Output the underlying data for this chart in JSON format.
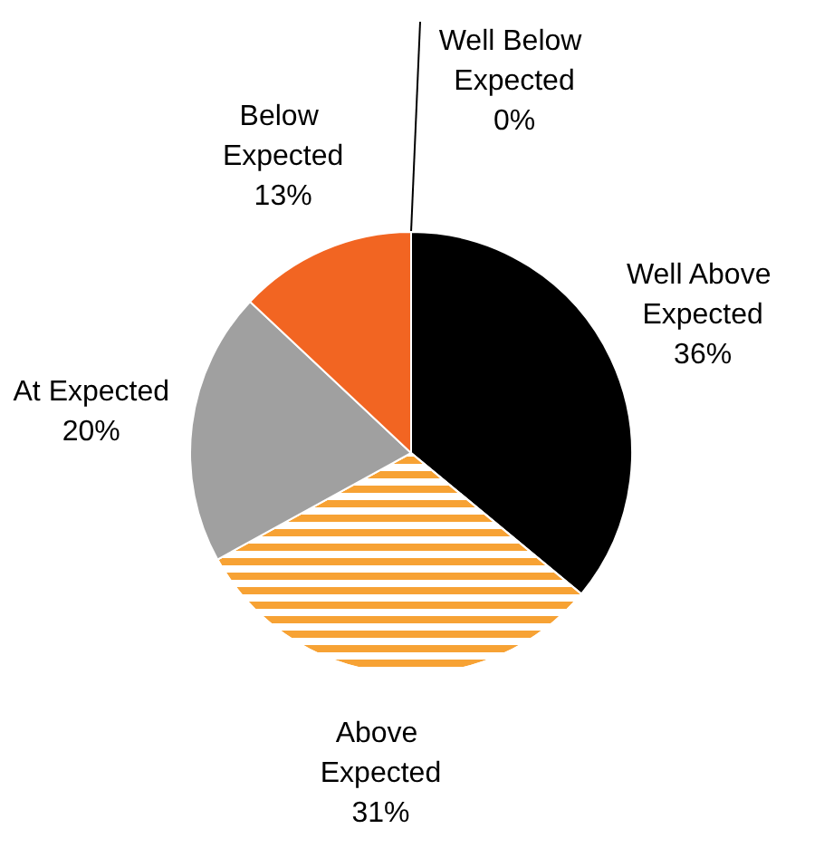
{
  "chart_data": {
    "type": "pie",
    "categories": [
      "Well Above Expected",
      "Above Expected",
      "At Expected",
      "Below Expected",
      "Well Below Expected"
    ],
    "values": [
      36,
      31,
      20,
      13,
      0
    ],
    "colors": [
      "#000000",
      "#f7a234",
      "#a0a0a0",
      "#f26522",
      "#000000"
    ],
    "value_labels": [
      "36%",
      "31%",
      "20%",
      "13%",
      "0%"
    ],
    "legend": false
  }
}
